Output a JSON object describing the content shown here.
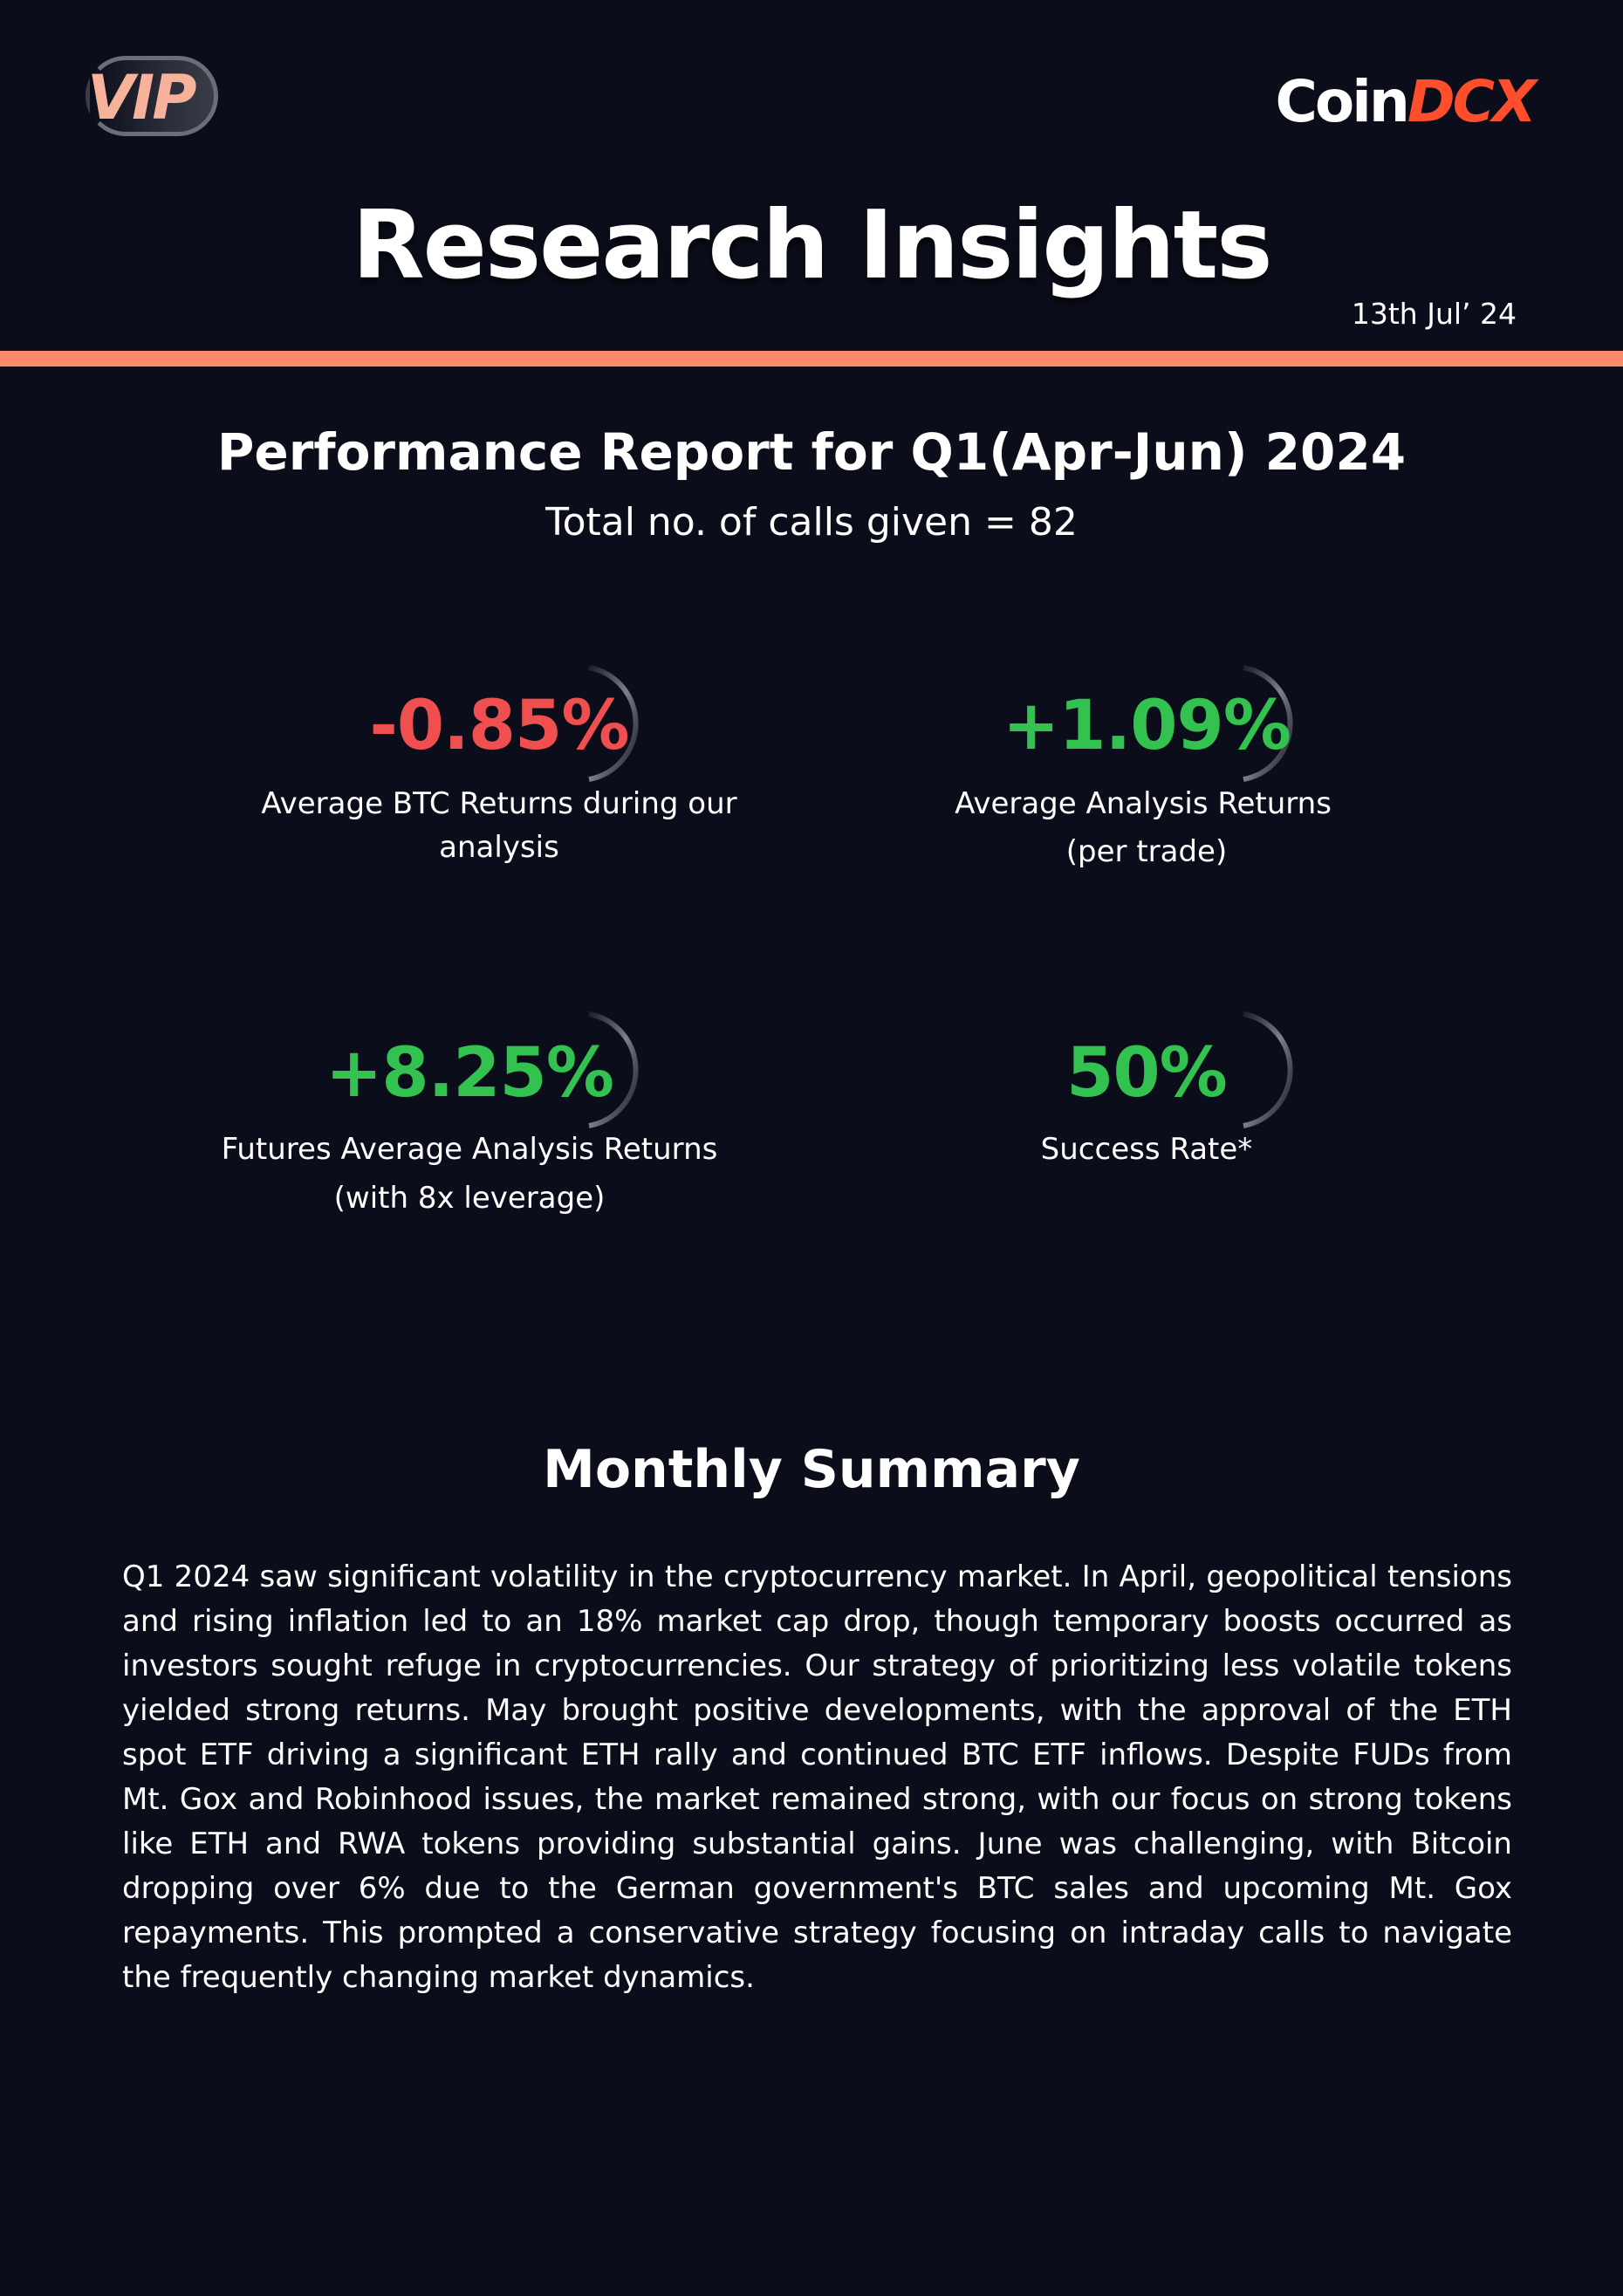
{
  "header": {
    "vip_label": "VIP",
    "brand_part1": "Coin",
    "brand_part2": "DCX",
    "brand_color": "#ff4e2b",
    "title": "Research Insights",
    "date": "13th Jul’ 24"
  },
  "colors": {
    "background": "#0b0d1a",
    "divider": "#f98a6c",
    "negative": "#f04f4f",
    "positive": "#33c14f"
  },
  "report": {
    "title": "Performance Report for Q1(Apr-Jun) 2024",
    "calls_total": "Total no. of calls given = 82"
  },
  "stats": [
    {
      "value": "-0.85%",
      "label_line1": "Average BTC Returns during our",
      "label_line2": "analysis",
      "tone": "negative"
    },
    {
      "value": "+1.09%",
      "label_line1": "Average Analysis Returns",
      "label_line2": "(per trade)",
      "tone": "positive"
    },
    {
      "value": "+8.25%",
      "label_line1": "Futures Average Analysis Returns",
      "label_line2": "(with 8x leverage)",
      "tone": "positive"
    },
    {
      "value": "50%",
      "label_line1": "Success Rate*",
      "label_line2": "",
      "tone": "positive"
    }
  ],
  "summary": {
    "title": "Monthly Summary",
    "body": "Q1 2024 saw significant volatility in the cryptocurrency market. In April, geopolitical tensions and rising inflation led to an 18% market cap drop, though temporary boosts occurred as investors sought refuge in cryptocurrencies. Our strategy of prioritizing less volatile tokens yielded strong returns. May brought positive developments, with the approval of the ETH spot ETF driving a significant ETH rally and continued BTC ETF inflows. Despite FUDs from Mt. Gox and Robinhood issues, the market remained strong, with our focus on strong tokens like ETH and RWA tokens providing substantial gains. June was challenging, with Bitcoin dropping over 6% due to the German government's BTC sales and upcoming Mt. Gox repayments. This prompted a conservative strategy focusing on intraday calls to navigate the frequently changing market dynamics."
  }
}
